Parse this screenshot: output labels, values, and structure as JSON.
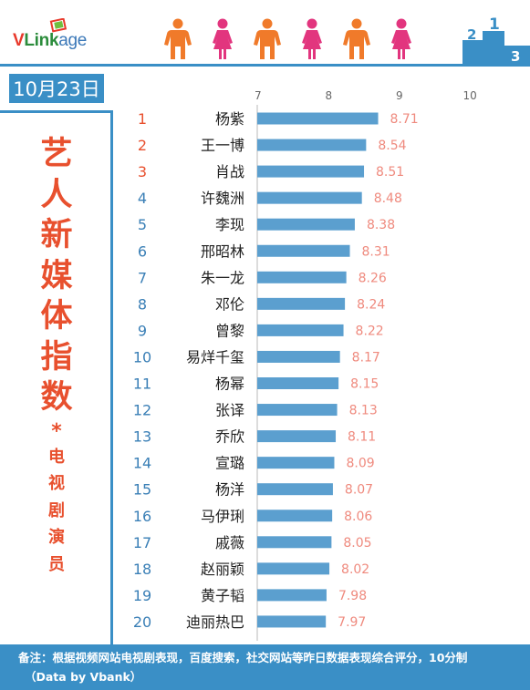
{
  "brand": {
    "logo_v": "V",
    "logo_link": "Link",
    "logo_age": "age"
  },
  "header": {
    "people_icons": [
      "male-person-icon",
      "female-person-icon",
      "male-person-icon",
      "female-person-icon",
      "male-person-icon",
      "female-person-icon"
    ],
    "podium_icon": "podium-icon",
    "podium_numbers": [
      "2",
      "1",
      "3"
    ]
  },
  "sidebar": {
    "date": "10月23日",
    "title_chars": [
      "艺",
      "人",
      "新",
      "媒",
      "体",
      "指",
      "数"
    ],
    "star": "*",
    "subtitle_chars": [
      "电",
      "视",
      "剧",
      "演",
      "员"
    ]
  },
  "colors": {
    "accent": "#3a8fc6",
    "bar": "#5b9fcf",
    "title": "#e8502e",
    "rank_top3": "#e8502e",
    "rank_other": "#3a7fb6",
    "value": "#ef8a7e",
    "male_icon": "#f07a2a",
    "female_icon": "#e2357e"
  },
  "chart_data": {
    "type": "bar",
    "orientation": "horizontal",
    "xlim": [
      7,
      10
    ],
    "xticks": [
      "7",
      "8",
      "9",
      "10"
    ],
    "grid": false,
    "ranks": [
      "1",
      "2",
      "3",
      "4",
      "5",
      "6",
      "7",
      "8",
      "9",
      "10",
      "11",
      "12",
      "13",
      "14",
      "15",
      "16",
      "17",
      "18",
      "19",
      "20"
    ],
    "categories": [
      "杨紫",
      "王一博",
      "肖战",
      "许魏洲",
      "李现",
      "邢昭林",
      "朱一龙",
      "邓伦",
      "曾黎",
      "易烊千玺",
      "杨幂",
      "张译",
      "乔欣",
      "宣璐",
      "杨洋",
      "马伊琍",
      "戚薇",
      "赵丽颖",
      "黄子韬",
      "迪丽热巴"
    ],
    "values": [
      8.71,
      8.54,
      8.51,
      8.48,
      8.38,
      8.31,
      8.26,
      8.24,
      8.22,
      8.17,
      8.15,
      8.13,
      8.11,
      8.09,
      8.07,
      8.06,
      8.05,
      8.02,
      7.98,
      7.97
    ],
    "value_labels": [
      "8.71",
      "8.54",
      "8.51",
      "8.48",
      "8.38",
      "8.31",
      "8.26",
      "8.24",
      "8.22",
      "8.17",
      "8.15",
      "8.13",
      "8.11",
      "8.09",
      "8.07",
      "8.06",
      "8.05",
      "8.02",
      "7.98",
      "7.97"
    ]
  },
  "footer": {
    "note": "备注：根据视频网站电视剧表现，百度搜索，社交网站等昨日数据表现综合评分，10分制",
    "credit": "（Data by Vbank）"
  }
}
